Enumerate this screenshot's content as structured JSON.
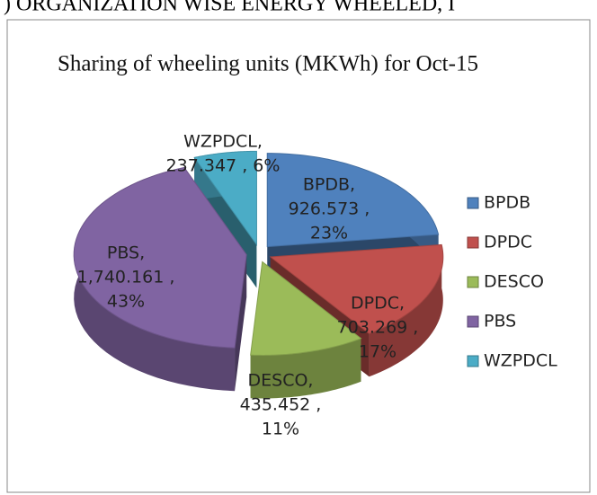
{
  "heading": ") ORGANIZATION WISE ENERGY WHEELED, I",
  "chart_data": {
    "type": "pie",
    "title": "Sharing of wheeling units (MKWh) for Oct-15",
    "categories": [
      "BPDB",
      "DPDC",
      "DESCO",
      "PBS",
      "WZPDCL"
    ],
    "values": [
      926.573,
      703.269,
      435.452,
      1740.161,
      237.347
    ],
    "value_labels": [
      [
        "BPDB,",
        "926.573 ,",
        "23%"
      ],
      [
        "DPDC,",
        "703.269 ,",
        "17%"
      ],
      [
        "DESCO,",
        "435.452 ,",
        "11%"
      ],
      [
        "PBS,",
        "1,740.161 ,",
        "43%"
      ],
      [
        "WZPDCL,",
        "237.347 , 6%"
      ]
    ],
    "colors": [
      "#4f81bd",
      "#c0504d",
      "#9bbb59",
      "#8064a2",
      "#4bacc6"
    ],
    "legend": "right"
  }
}
